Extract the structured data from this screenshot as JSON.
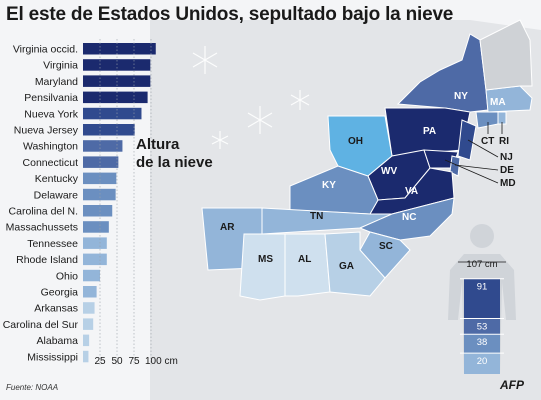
{
  "title": "El este de Estados Unidos, sepultado bajo la nieve",
  "legend_title_line1": "Altura",
  "legend_title_line2": "de la nieve",
  "source": "Fuente: NOAA",
  "logo": "AFP",
  "colors": {
    "darkest": "#1b2a6e",
    "dark": "#304a8e",
    "mid_dark": "#4e6aa6",
    "mid": "#6b8fc0",
    "light": "#93b5d9",
    "lighter": "#b7d0e6",
    "pale": "#cfe0ee",
    "cyan": "#5fb2e3",
    "background": "#f4f5f7"
  },
  "chart_data": {
    "type": "bar",
    "orientation": "horizontal",
    "unit": "cm",
    "categories": [
      "Virginia occid.",
      "Virginia",
      "Maryland",
      "Pensilvania",
      "Nueva York",
      "Nueva Jersey",
      "Washington",
      "Connecticut",
      "Kentucky",
      "Delaware",
      "Carolina del N.",
      "Massachussets",
      "Tennessee",
      "Rhode Island",
      "Ohio",
      "Georgia",
      "Arkansas",
      "Carolina del Sur",
      "Alabama",
      "Mississippi"
    ],
    "values": [
      107,
      99,
      99,
      95,
      86,
      76,
      58,
      52,
      49,
      48,
      43,
      38,
      35,
      35,
      25,
      20,
      17,
      15,
      9,
      8
    ],
    "xticks": [
      "25",
      "50",
      "75",
      "100 cm"
    ],
    "xtick_values": [
      25,
      50,
      75,
      100
    ],
    "xlim": [
      0,
      107
    ],
    "grid": false
  },
  "map_labels": {
    "NY": "NY",
    "MA": "MA",
    "PA": "PA",
    "OH": "OH",
    "KY": "KY",
    "WV": "WV",
    "VA": "VA",
    "TN": "TN",
    "NC": "NC",
    "AR": "AR",
    "MS": "MS",
    "AL": "AL",
    "GA": "GA",
    "SC": "SC",
    "CT": "CT",
    "RI": "RI",
    "NJ": "NJ",
    "DE": "DE",
    "MD": "MD"
  },
  "person_scale": {
    "top_label": "107 cm",
    "levels": [
      "91",
      "53",
      "38",
      "20"
    ],
    "level_values": [
      91,
      53,
      38,
      20
    ],
    "max": 107
  }
}
